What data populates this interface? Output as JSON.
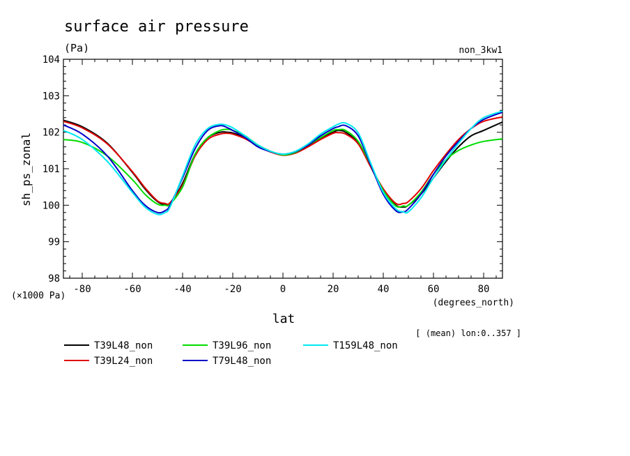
{
  "chart_data": {
    "type": "line",
    "title": "surface air pressure",
    "units": "(Pa)",
    "experiment": "non_3kw1",
    "xlabel": "lat",
    "xunits": "(degrees_north)",
    "ylabel": "sh_ps_zonal",
    "yscale_label": "(×1000 Pa)",
    "note": "[ (mean) lon:0..357 ]",
    "xlim": [
      -87.5,
      87.5
    ],
    "ylim": [
      98,
      104
    ],
    "xticks": [
      -80,
      -60,
      -40,
      -20,
      0,
      20,
      40,
      60,
      80
    ],
    "xtick_labels": [
      "-80",
      "-60",
      "-40",
      "-20",
      "0",
      "20",
      "40",
      "60",
      "80"
    ],
    "yticks": [
      98,
      99,
      100,
      101,
      102,
      103,
      104
    ],
    "ytick_labels": [
      "98",
      "99",
      "100",
      "101",
      "102",
      "103",
      "104"
    ],
    "grid": false,
    "legend_position": "bottom",
    "x": [
      -87.5,
      -80,
      -70,
      -60,
      -55,
      -50,
      -47,
      -45,
      -40,
      -35,
      -30,
      -25,
      -22,
      -20,
      -15,
      -10,
      -5,
      0,
      5,
      10,
      15,
      20,
      22,
      25,
      30,
      35,
      40,
      45,
      48,
      50,
      55,
      60,
      65,
      70,
      75,
      80,
      87.5
    ],
    "series": [
      {
        "name": "T39L48_non",
        "color": "#000000",
        "values": [
          102.33,
          102.15,
          101.7,
          100.9,
          100.45,
          100.1,
          100.02,
          100.05,
          100.6,
          101.4,
          101.85,
          102.0,
          102.0,
          101.98,
          101.85,
          101.65,
          101.48,
          101.38,
          101.45,
          101.62,
          101.83,
          102.0,
          102.05,
          102.0,
          101.7,
          101.05,
          100.4,
          100.0,
          99.95,
          100.0,
          100.3,
          100.75,
          101.2,
          101.6,
          101.9,
          102.05,
          102.28
        ]
      },
      {
        "name": "T39L24_non",
        "color": "#e00000",
        "values": [
          102.3,
          102.12,
          101.68,
          100.92,
          100.48,
          100.12,
          100.05,
          100.07,
          100.55,
          101.35,
          101.8,
          101.95,
          101.97,
          101.95,
          101.82,
          101.62,
          101.46,
          101.37,
          101.43,
          101.6,
          101.8,
          101.97,
          101.99,
          101.95,
          101.68,
          101.05,
          100.45,
          100.05,
          100.05,
          100.1,
          100.45,
          100.95,
          101.4,
          101.8,
          102.1,
          102.3,
          102.42
        ]
      },
      {
        "name": "T39L96_non",
        "color": "#00dc00",
        "values": [
          101.8,
          101.72,
          101.35,
          100.7,
          100.3,
          100.03,
          100.0,
          100.03,
          100.5,
          101.4,
          101.85,
          102.05,
          102.08,
          102.05,
          101.9,
          101.65,
          101.48,
          101.38,
          101.45,
          101.65,
          101.85,
          102.05,
          102.07,
          102.05,
          101.75,
          101.1,
          100.4,
          99.98,
          99.98,
          100.0,
          100.35,
          100.85,
          101.25,
          101.5,
          101.65,
          101.75,
          101.82
        ]
      },
      {
        "name": "T79L48_non",
        "color": "#0000c8",
        "values": [
          102.2,
          101.95,
          101.35,
          100.4,
          100.0,
          99.8,
          99.85,
          100.0,
          100.75,
          101.55,
          102.05,
          102.18,
          102.12,
          102.05,
          101.85,
          101.6,
          101.47,
          101.4,
          101.47,
          101.65,
          101.9,
          102.1,
          102.15,
          102.18,
          101.9,
          101.1,
          100.3,
          99.85,
          99.82,
          99.9,
          100.3,
          100.85,
          101.35,
          101.75,
          102.1,
          102.35,
          102.55
        ]
      },
      {
        "name": "T159L48_non",
        "color": "#00e8f0",
        "values": [
          102.05,
          101.8,
          101.2,
          100.35,
          99.95,
          99.75,
          99.8,
          99.95,
          100.8,
          101.65,
          102.1,
          102.22,
          102.18,
          102.12,
          101.9,
          101.65,
          101.48,
          101.4,
          101.48,
          101.68,
          101.95,
          102.15,
          102.22,
          102.25,
          101.98,
          101.15,
          100.35,
          99.9,
          99.82,
          99.82,
          100.2,
          100.75,
          101.25,
          101.7,
          102.1,
          102.4,
          102.58
        ]
      }
    ]
  }
}
